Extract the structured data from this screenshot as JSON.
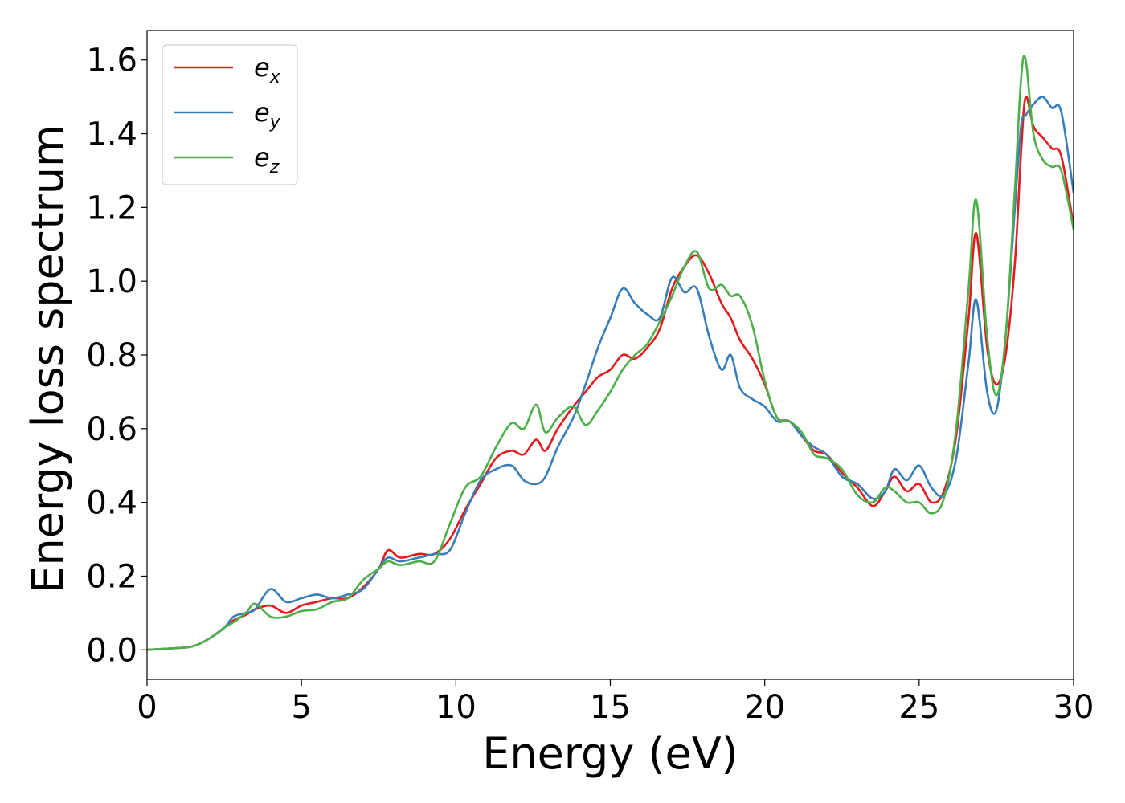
{
  "chart_data": {
    "type": "line",
    "xlabel": "Energy (eV)",
    "ylabel": "Energy loss spectrum",
    "xlim": [
      0,
      30
    ],
    "ylim": [
      -0.08,
      1.68
    ],
    "xticks": [
      0,
      5,
      10,
      15,
      20,
      25,
      30
    ],
    "xtick_labels": [
      "0",
      "5",
      "10",
      "15",
      "20",
      "25",
      "30"
    ],
    "yticks": [
      0.0,
      0.2,
      0.4,
      0.6,
      0.8,
      1.0,
      1.2,
      1.4,
      1.6
    ],
    "ytick_labels": [
      "0.0",
      "0.2",
      "0.4",
      "0.6",
      "0.8",
      "1.0",
      "1.2",
      "1.4",
      "1.6"
    ],
    "grid": false,
    "legend_position": "top-left",
    "series": [
      {
        "name": "e_x",
        "label_base": "e",
        "label_sub": "x",
        "color": "#e41a1c",
        "x": [
          0,
          1,
          1.5,
          2,
          2.5,
          2.8,
          3.2,
          3.5,
          4.0,
          4.5,
          5,
          5.5,
          6,
          6.5,
          7,
          7.5,
          7.8,
          8.2,
          8.8,
          9.3,
          9.8,
          10.3,
          10.8,
          11.3,
          11.8,
          12.2,
          12.6,
          12.9,
          13.3,
          13.8,
          14.2,
          14.6,
          15.0,
          15.4,
          15.8,
          16.2,
          16.6,
          17.0,
          17.4,
          17.8,
          18.2,
          18.6,
          18.9,
          19.2,
          19.6,
          20.0,
          20.4,
          20.8,
          21.2,
          21.6,
          22.0,
          22.5,
          23.0,
          23.5,
          23.9,
          24.2,
          24.6,
          25.0,
          25.4,
          25.8,
          26.2,
          26.6,
          26.85,
          27.2,
          27.5,
          27.8,
          28.1,
          28.3,
          28.45,
          28.7,
          29.0,
          29.3,
          29.6,
          30.0
        ],
        "y": [
          0.0,
          0.005,
          0.01,
          0.03,
          0.06,
          0.08,
          0.095,
          0.11,
          0.12,
          0.1,
          0.12,
          0.13,
          0.14,
          0.14,
          0.17,
          0.22,
          0.27,
          0.25,
          0.26,
          0.26,
          0.3,
          0.38,
          0.45,
          0.52,
          0.54,
          0.53,
          0.57,
          0.54,
          0.6,
          0.66,
          0.7,
          0.74,
          0.76,
          0.8,
          0.79,
          0.82,
          0.87,
          0.98,
          1.04,
          1.07,
          1.02,
          0.94,
          0.9,
          0.84,
          0.79,
          0.72,
          0.63,
          0.62,
          0.58,
          0.54,
          0.53,
          0.48,
          0.44,
          0.39,
          0.43,
          0.47,
          0.43,
          0.45,
          0.4,
          0.43,
          0.58,
          0.9,
          1.13,
          0.82,
          0.72,
          0.8,
          1.05,
          1.35,
          1.5,
          1.42,
          1.39,
          1.36,
          1.34,
          1.15
        ]
      },
      {
        "name": "e_y",
        "label_base": "e",
        "label_sub": "y",
        "color": "#377eb8",
        "x": [
          0,
          1,
          1.5,
          2,
          2.5,
          2.8,
          3.2,
          3.5,
          4.0,
          4.5,
          5,
          5.5,
          6,
          6.5,
          7,
          7.5,
          7.8,
          8.2,
          8.8,
          9.3,
          9.8,
          10.3,
          10.8,
          11.3,
          11.8,
          12.2,
          12.6,
          12.9,
          13.3,
          13.8,
          14.2,
          14.6,
          15.0,
          15.4,
          15.8,
          16.2,
          16.6,
          17.0,
          17.4,
          17.8,
          18.2,
          18.6,
          18.9,
          19.2,
          19.6,
          20.0,
          20.4,
          20.8,
          21.2,
          21.6,
          22.0,
          22.5,
          23.0,
          23.5,
          23.9,
          24.2,
          24.6,
          25.0,
          25.4,
          25.8,
          26.2,
          26.6,
          26.85,
          27.2,
          27.5,
          27.8,
          28.1,
          28.3,
          28.45,
          28.7,
          29.0,
          29.3,
          29.6,
          30.0
        ],
        "y": [
          0.0,
          0.005,
          0.01,
          0.03,
          0.06,
          0.09,
          0.1,
          0.11,
          0.165,
          0.13,
          0.14,
          0.15,
          0.14,
          0.15,
          0.165,
          0.22,
          0.25,
          0.24,
          0.25,
          0.26,
          0.27,
          0.37,
          0.46,
          0.49,
          0.5,
          0.46,
          0.45,
          0.47,
          0.55,
          0.63,
          0.72,
          0.82,
          0.9,
          0.98,
          0.94,
          0.91,
          0.9,
          1.01,
          0.97,
          0.98,
          0.85,
          0.76,
          0.8,
          0.71,
          0.68,
          0.66,
          0.62,
          0.62,
          0.58,
          0.55,
          0.53,
          0.47,
          0.45,
          0.41,
          0.43,
          0.49,
          0.46,
          0.5,
          0.44,
          0.42,
          0.52,
          0.78,
          0.95,
          0.7,
          0.65,
          0.85,
          1.2,
          1.42,
          1.45,
          1.48,
          1.5,
          1.47,
          1.46,
          1.24
        ]
      },
      {
        "name": "e_z",
        "label_base": "e",
        "label_sub": "z",
        "color": "#4daf4a",
        "x": [
          0,
          1,
          1.5,
          2,
          2.5,
          2.8,
          3.2,
          3.5,
          4.0,
          4.5,
          5,
          5.5,
          6,
          6.5,
          7,
          7.5,
          7.8,
          8.2,
          8.8,
          9.3,
          9.8,
          10.3,
          10.8,
          11.3,
          11.8,
          12.2,
          12.6,
          12.9,
          13.3,
          13.8,
          14.2,
          14.6,
          15.0,
          15.4,
          15.8,
          16.2,
          16.6,
          17.0,
          17.4,
          17.8,
          18.2,
          18.6,
          18.9,
          19.2,
          19.6,
          20.0,
          20.4,
          20.8,
          21.2,
          21.6,
          22.0,
          22.5,
          23.0,
          23.5,
          23.9,
          24.2,
          24.6,
          25.0,
          25.4,
          25.8,
          26.2,
          26.6,
          26.85,
          27.2,
          27.5,
          27.8,
          28.1,
          28.3,
          28.45,
          28.7,
          29.0,
          29.3,
          29.6,
          30.0
        ],
        "y": [
          0.0,
          0.005,
          0.01,
          0.03,
          0.06,
          0.075,
          0.1,
          0.125,
          0.09,
          0.09,
          0.105,
          0.11,
          0.13,
          0.14,
          0.19,
          0.22,
          0.24,
          0.23,
          0.24,
          0.24,
          0.34,
          0.44,
          0.47,
          0.55,
          0.615,
          0.6,
          0.665,
          0.59,
          0.63,
          0.66,
          0.61,
          0.65,
          0.7,
          0.76,
          0.8,
          0.83,
          0.89,
          0.96,
          1.04,
          1.08,
          0.98,
          0.99,
          0.96,
          0.96,
          0.88,
          0.73,
          0.63,
          0.62,
          0.59,
          0.53,
          0.52,
          0.49,
          0.42,
          0.4,
          0.44,
          0.43,
          0.4,
          0.4,
          0.37,
          0.41,
          0.6,
          0.98,
          1.22,
          0.85,
          0.69,
          0.85,
          1.25,
          1.55,
          1.6,
          1.4,
          1.33,
          1.31,
          1.3,
          1.14
        ]
      }
    ]
  }
}
